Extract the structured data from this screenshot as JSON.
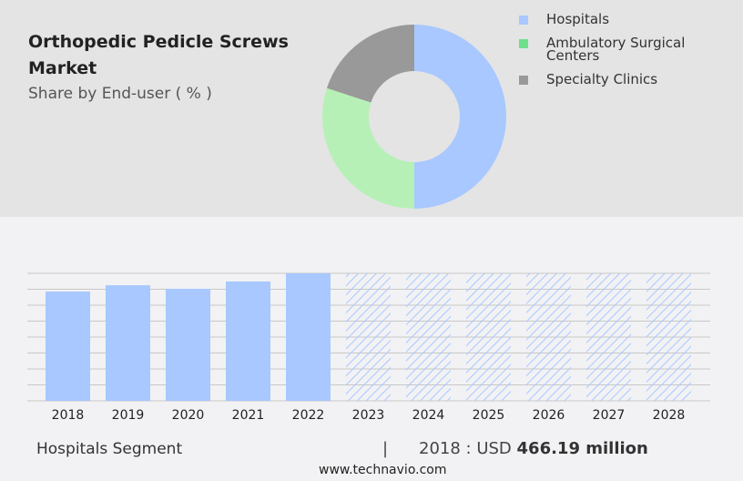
{
  "header": {
    "title": "Orthopedic Pedicle Screws Market",
    "subtitle": "Share by End-user ( % )"
  },
  "chart_data": [
    {
      "type": "pie",
      "variant": "donut",
      "segments": [
        {
          "name": "Hospitals",
          "value": 50,
          "color": "#a8c8ff"
        },
        {
          "name": "Ambulatory Surgical Centers",
          "value": 30,
          "color": "#b7f0b7"
        },
        {
          "name": "Specialty Clinics",
          "value": 20,
          "color": "#999999"
        }
      ],
      "legend_colors": [
        "#a8c8ff",
        "#6ee08a",
        "#999999"
      ],
      "legend": "right"
    },
    {
      "type": "bar",
      "categories": [
        "2018",
        "2019",
        "2020",
        "2021",
        "2022",
        "2023",
        "2024",
        "2025",
        "2026",
        "2027",
        "2028"
      ],
      "values": [
        466.19,
        493,
        478,
        509,
        544,
        null,
        null,
        null,
        null,
        null,
        null
      ],
      "forecast": [
        false,
        false,
        false,
        false,
        false,
        true,
        true,
        true,
        true,
        true,
        true
      ],
      "ylim": [
        0,
        544
      ],
      "grid": true,
      "color": "#a8c8ff",
      "xlabel": "",
      "ylabel": ""
    }
  ],
  "footer": {
    "segment": "Hospitals Segment",
    "separator": "|",
    "year_label": "2018 : USD",
    "value": "466.19 million",
    "url": "www.technavio.com"
  }
}
